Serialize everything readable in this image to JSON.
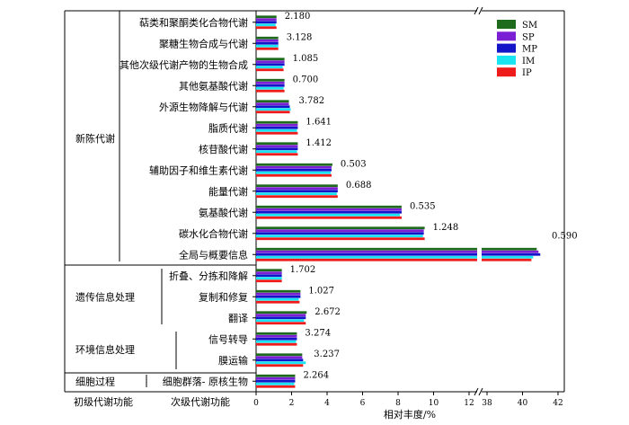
{
  "chart_data": {
    "type": "bar",
    "orientation": "horizontal",
    "xlabel": "相对丰度/%",
    "xlim": [
      0,
      42
    ],
    "axis_break": [
      13,
      38
    ],
    "ticks_left": [
      0,
      2,
      4,
      6,
      8,
      10,
      12
    ],
    "ticks_right": [
      38,
      40,
      42
    ],
    "legend_position": "top-right",
    "colors": {
      "SM": "#1e6b1e",
      "SP": "#7a1fd4",
      "MP": "#1414c8",
      "IM": "#18e4f2",
      "IP": "#ef1a1a"
    },
    "categories": [
      "萜类和聚酮类化合物代谢",
      "聚糖生物合成与代谢",
      "其他次级代谢产物的生物合成",
      "其他氨基酸代谢",
      "外源生物降解与代谢",
      "脂质代谢",
      "核苷酸代谢",
      "辅助因子和维生素代谢",
      "能量代谢",
      "氨基酸代谢",
      "碳水化合物代谢",
      "全局与概要信息",
      "折叠、分拣和降解",
      "复制和修复",
      "翻译",
      "信号转导",
      "膜运输",
      "细胞群落- 原核生物"
    ],
    "series": [
      {
        "name": "SM",
        "values": [
          1.15,
          1.25,
          1.6,
          1.6,
          1.85,
          2.35,
          2.35,
          4.3,
          4.6,
          8.2,
          9.5,
          40.8,
          1.45,
          2.5,
          2.85,
          2.3,
          2.6,
          2.2
        ]
      },
      {
        "name": "SP",
        "values": [
          1.15,
          1.25,
          1.6,
          1.6,
          1.85,
          2.35,
          2.35,
          4.25,
          4.6,
          8.2,
          9.45,
          40.9,
          1.45,
          2.5,
          2.8,
          2.3,
          2.6,
          2.2
        ]
      },
      {
        "name": "MP",
        "values": [
          1.15,
          1.25,
          1.6,
          1.6,
          1.9,
          2.35,
          2.35,
          4.25,
          4.6,
          8.2,
          9.45,
          41.0,
          1.45,
          2.5,
          2.8,
          2.3,
          2.65,
          2.2
        ]
      },
      {
        "name": "IM",
        "values": [
          1.1,
          1.25,
          1.5,
          1.55,
          1.95,
          2.3,
          2.3,
          4.2,
          4.55,
          8.1,
          9.4,
          40.6,
          1.45,
          2.4,
          2.7,
          2.25,
          2.8,
          2.15
        ]
      },
      {
        "name": "IP",
        "values": [
          1.15,
          1.25,
          1.55,
          1.6,
          1.9,
          2.35,
          2.35,
          4.25,
          4.6,
          8.2,
          9.5,
          40.5,
          1.45,
          2.45,
          2.8,
          2.3,
          2.65,
          2.2
        ]
      }
    ],
    "value_labels": [
      "2.180",
      "3.128",
      "1.085",
      "0.700",
      "3.782",
      "1.641",
      "1.412",
      "0.503",
      "0.688",
      "0.535",
      "1.248",
      "0.590",
      "1.702",
      "1.027",
      "2.672",
      "3.274",
      "3.237",
      "2.264"
    ],
    "groups": [
      {
        "label": "新陈代谢",
        "start": 0,
        "end": 11
      },
      {
        "label": "遗传信息处理",
        "start": 12,
        "end": 14
      },
      {
        "label": "环境信息处理",
        "start": 15,
        "end": 16
      },
      {
        "label": "细胞过程",
        "start": 17,
        "end": 17
      }
    ],
    "col_headers": {
      "level1": "初级代谢功能",
      "level2": "次级代谢功能"
    }
  }
}
